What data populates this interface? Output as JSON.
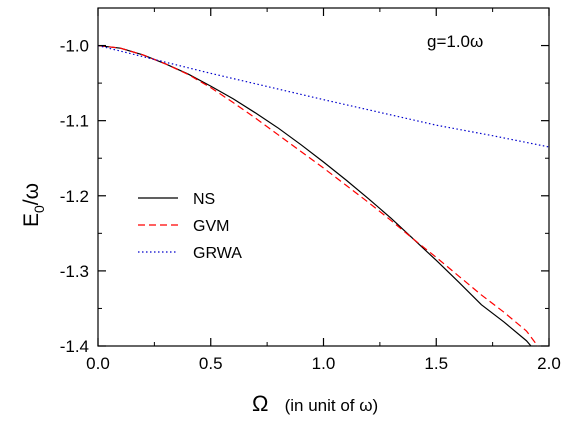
{
  "chart_data": {
    "type": "line",
    "annotation": "g=1.0ω",
    "xlabel": {
      "symbol": "Ω",
      "rest": "(in unit of ω)"
    },
    "ylabel": {
      "main": "E",
      "sub": "0",
      "rest": "/ω"
    },
    "xlim": [
      0,
      2.0
    ],
    "ylim": [
      -1.4,
      -0.95
    ],
    "x_ticks": [
      0.0,
      0.5,
      1.0,
      1.5,
      2.0
    ],
    "x_tick_labels": [
      "0.0",
      "0.5",
      "1.0",
      "1.5",
      "2.0"
    ],
    "y_ticks": [
      -1.0,
      -1.1,
      -1.2,
      -1.3,
      -1.4
    ],
    "y_tick_labels": [
      "-1.0",
      "-1.1",
      "-1.2",
      "-1.3",
      "-1.4"
    ],
    "legend_position": "middle-left",
    "grid": false,
    "series": [
      {
        "name": "NS",
        "color": "#000000",
        "style": "solid",
        "x": [
          0.0,
          0.1,
          0.2,
          0.3,
          0.4,
          0.5,
          0.6,
          0.7,
          0.8,
          0.9,
          1.0,
          1.1,
          1.2,
          1.3,
          1.4,
          1.5,
          1.6,
          1.7,
          1.8,
          1.9,
          1.92
        ],
        "y": [
          -1.0,
          -1.0035,
          -1.0125,
          -1.0245,
          -1.038,
          -1.054,
          -1.071,
          -1.09,
          -1.11,
          -1.132,
          -1.155,
          -1.179,
          -1.204,
          -1.23,
          -1.258,
          -1.286,
          -1.315,
          -1.345,
          -1.368,
          -1.393,
          -1.4
        ]
      },
      {
        "name": "GVM",
        "color": "#ff0000",
        "style": "dashed",
        "x": [
          0.0,
          0.1,
          0.2,
          0.3,
          0.4,
          0.5,
          0.6,
          0.7,
          0.8,
          0.9,
          1.0,
          1.1,
          1.2,
          1.3,
          1.4,
          1.5,
          1.6,
          1.7,
          1.8,
          1.9,
          1.95
        ],
        "y": [
          -1.0,
          -1.0035,
          -1.0125,
          -1.0245,
          -1.0385,
          -1.056,
          -1.076,
          -1.097,
          -1.119,
          -1.141,
          -1.163,
          -1.186,
          -1.209,
          -1.233,
          -1.258,
          -1.282,
          -1.307,
          -1.332,
          -1.355,
          -1.38,
          -1.4
        ]
      },
      {
        "name": "GRWA",
        "color": "#0000cc",
        "style": "dotted",
        "x": [
          0.0,
          0.25,
          0.5,
          0.75,
          1.0,
          1.25,
          1.5,
          1.75,
          2.0
        ],
        "y": [
          -1.0,
          -1.0185,
          -1.037,
          -1.0545,
          -1.072,
          -1.089,
          -1.106,
          -1.12,
          -1.135
        ]
      }
    ]
  }
}
